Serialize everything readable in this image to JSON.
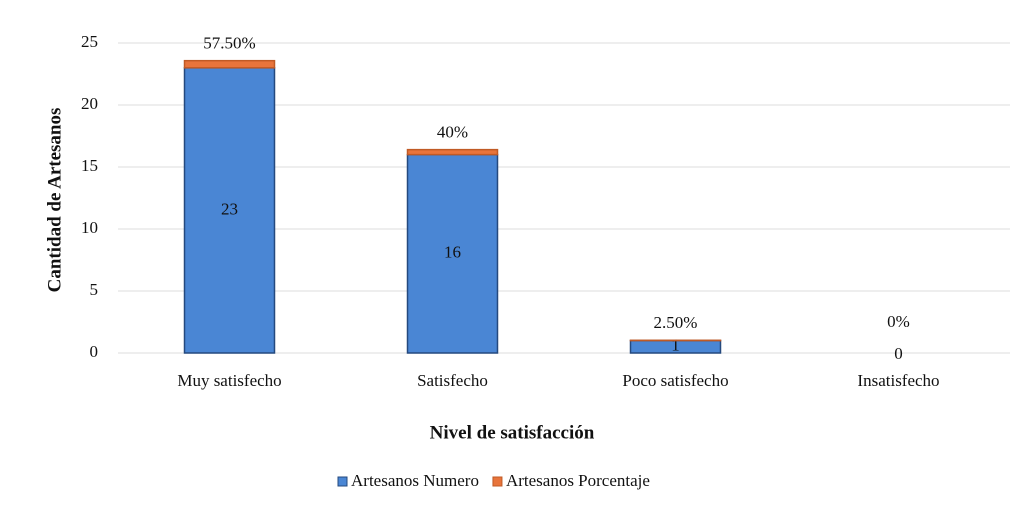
{
  "chart_data": {
    "type": "stacked_bar",
    "x_label": "Nivel de satisfacción",
    "y_label": "Cantidad de Artesanos",
    "categories": [
      "Muy satisfecho",
      "Satisfecho",
      "Poco satisfecho",
      "Insatisfecho"
    ],
    "series": [
      {
        "name": "Artesanos Numero",
        "color": "#4a86d4",
        "values": [
          23,
          16,
          1,
          0
        ]
      },
      {
        "name": "Artesanos Porcentaje",
        "color": "#e8743b",
        "values": [
          0.575,
          0.4,
          0.025,
          0
        ],
        "value_labels": [
          "57.50%",
          "40%",
          "2.50%",
          "0%"
        ]
      }
    ],
    "ylim": [
      0,
      25
    ],
    "yticks": [
      0,
      5,
      10,
      15,
      20,
      25
    ],
    "grid": true,
    "legend": "bottom"
  }
}
